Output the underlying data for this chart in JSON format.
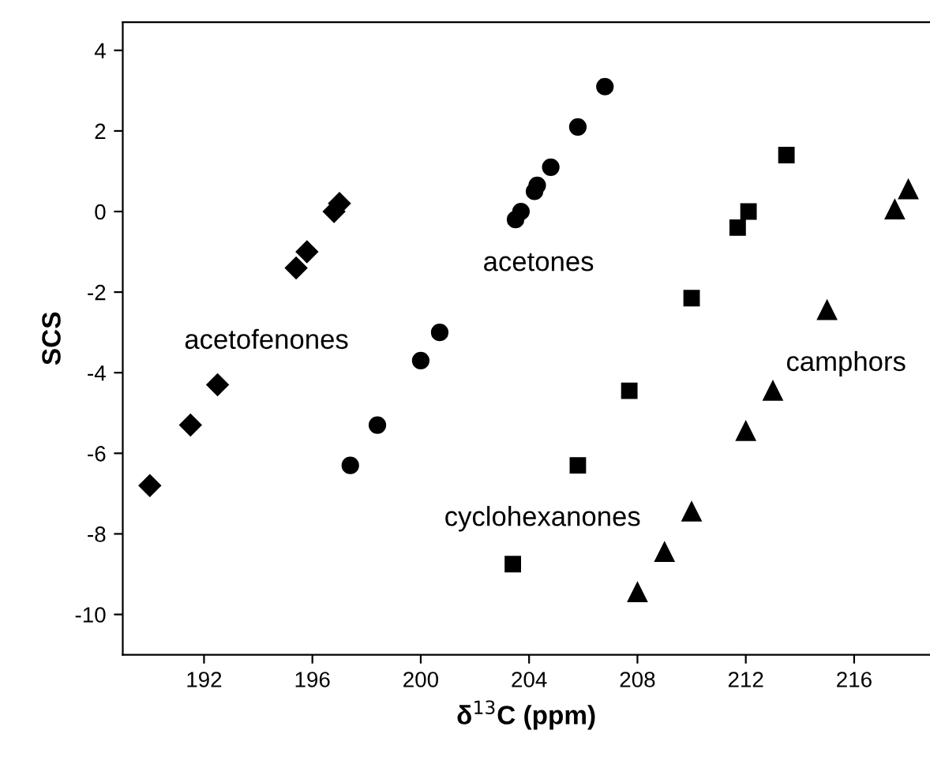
{
  "chart_data": {
    "type": "scatter",
    "xlabel": "δ$^{13}$C (ppm)",
    "ylabel": "SCS",
    "xlim": [
      189,
      218.8
    ],
    "ylim": [
      -11,
      4.7
    ],
    "xticks": [
      192,
      196,
      200,
      204,
      208,
      212,
      216
    ],
    "yticks": [
      -10,
      -8,
      -6,
      -4,
      -2,
      0,
      2,
      4
    ],
    "grid": false,
    "legend": false,
    "series": [
      {
        "name": "acetofenones",
        "color": "#000000",
        "marker": "diamond",
        "x": [
          190.0,
          191.5,
          192.5,
          195.4,
          195.8,
          196.8,
          197.0
        ],
        "values": [
          -6.8,
          -5.3,
          -4.3,
          -1.4,
          -1.0,
          0.0,
          0.2
        ]
      },
      {
        "name": "acetones",
        "color": "#000000",
        "marker": "circle",
        "x": [
          197.4,
          198.4,
          200.0,
          200.7,
          203.5,
          203.7,
          204.2,
          204.3,
          204.8,
          205.8,
          206.8
        ],
        "values": [
          -6.3,
          -5.3,
          -3.7,
          -3.0,
          -0.2,
          0.0,
          0.5,
          0.65,
          1.1,
          2.1,
          3.1
        ]
      },
      {
        "name": "cyclohexanones",
        "color": "#000000",
        "marker": "square",
        "x": [
          203.4,
          205.8,
          207.7,
          210.0,
          211.7,
          212.1,
          213.5
        ],
        "values": [
          -8.75,
          -6.3,
          -4.45,
          -2.15,
          -0.4,
          0.0,
          1.4
        ]
      },
      {
        "name": "camphors",
        "color": "#000000",
        "marker": "triangle",
        "x": [
          208.0,
          209.0,
          210.0,
          212.0,
          213.0,
          215.0,
          217.5,
          218.0
        ],
        "values": [
          -9.45,
          -8.45,
          -7.45,
          -5.45,
          -4.45,
          -2.45,
          0.05,
          0.55
        ]
      }
    ]
  }
}
